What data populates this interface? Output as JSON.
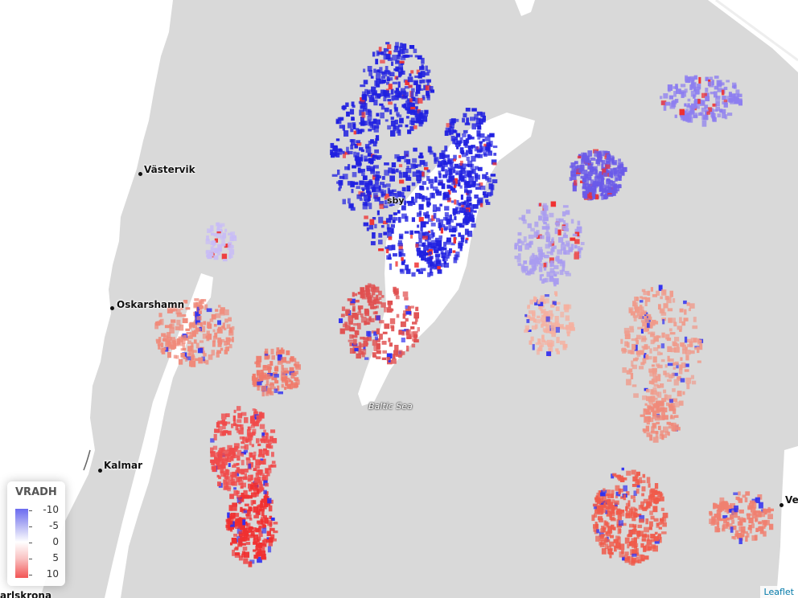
{
  "map": {
    "places": [
      {
        "name": "Västervik"
      },
      {
        "name": "Oskarshamn"
      },
      {
        "name": "Kalmar"
      },
      {
        "name": "Ve"
      },
      {
        "name": "arlskrona"
      },
      {
        "name": "sby"
      }
    ],
    "sea_label": "Baltic Sea"
  },
  "legend": {
    "title": "VRADH",
    "ticks": [
      "-10",
      "-5",
      "0",
      "5",
      "10"
    ],
    "colors": {
      "neg": "#3a3af0",
      "zero": "#ffffff",
      "pos": "#f03a3a"
    }
  },
  "attribution": "Leaflet"
}
